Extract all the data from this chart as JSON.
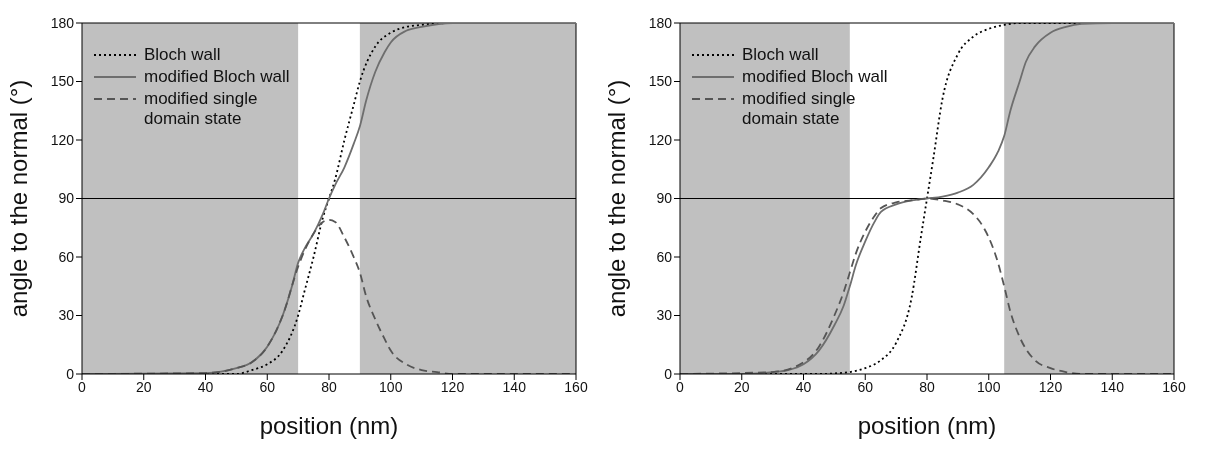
{
  "chart_data": [
    {
      "type": "line",
      "xlabel": "position (nm)",
      "ylabel": "angle to the normal (°)",
      "xlim": [
        0,
        160
      ],
      "xticks": [
        0,
        20,
        40,
        60,
        80,
        100,
        120,
        140,
        160
      ],
      "ylim": [
        0,
        180
      ],
      "yticks": [
        0,
        30,
        60,
        90,
        120,
        150,
        180
      ],
      "legend": "top left",
      "marker": "none",
      "bands": [
        {
          "axis": "x",
          "from": 0,
          "to": 70,
          "color": "#c0c0c0"
        },
        {
          "axis": "x",
          "from": 90,
          "to": 160,
          "color": "#c0c0c0"
        }
      ],
      "ref_lines": [
        {
          "axis": "y",
          "value": 90,
          "color": "#000000",
          "line_style": "solid"
        }
      ],
      "series": [
        {
          "name": "Bloch wall",
          "color": "#000000",
          "line_style": "dotted",
          "x": [
            0,
            50,
            55,
            60,
            65,
            70,
            72,
            75,
            78,
            80,
            82,
            85,
            88,
            90,
            95,
            100,
            105,
            110,
            120,
            160
          ],
          "values": [
            0,
            0,
            2,
            5,
            12,
            30,
            42,
            60,
            80,
            90,
            100,
            120,
            138,
            150,
            168,
            175,
            178,
            179,
            180,
            180
          ]
        },
        {
          "name": "modified Bloch wall",
          "color": "#6e6e6e",
          "line_style": "solid",
          "x": [
            0,
            40,
            50,
            55,
            60,
            65,
            68,
            70,
            72,
            75,
            78,
            80,
            82,
            85,
            88,
            90,
            92,
            95,
            98,
            100,
            105,
            110,
            120,
            160
          ],
          "values": [
            0,
            0.5,
            3,
            6,
            14,
            30,
            45,
            57,
            64,
            72,
            82,
            90,
            97,
            106,
            118,
            127,
            140,
            155,
            165,
            170,
            176,
            178,
            180,
            180
          ]
        },
        {
          "name": "modified single domain state",
          "color": "#555555",
          "line_style": "dashed",
          "x": [
            0,
            40,
            50,
            55,
            60,
            65,
            70,
            72,
            75,
            78,
            80,
            82,
            85,
            88,
            90,
            92,
            95,
            98,
            100,
            105,
            110,
            115,
            120,
            160
          ],
          "values": [
            0,
            0.5,
            3,
            6,
            14,
            30,
            55,
            63,
            72,
            78,
            79,
            78,
            70,
            60,
            52,
            40,
            28,
            18,
            12,
            5,
            2,
            1,
            0,
            0
          ]
        }
      ]
    },
    {
      "type": "line",
      "xlabel": "position (nm)",
      "ylabel": "angle to the normal (°)",
      "xlim": [
        0,
        160
      ],
      "xticks": [
        0,
        20,
        40,
        60,
        80,
        100,
        120,
        140,
        160
      ],
      "ylim": [
        0,
        180
      ],
      "yticks": [
        0,
        30,
        60,
        90,
        120,
        150,
        180
      ],
      "legend": "top left",
      "marker": "none",
      "bands": [
        {
          "axis": "x",
          "from": 0,
          "to": 55,
          "color": "#c0c0c0"
        },
        {
          "axis": "x",
          "from": 105,
          "to": 160,
          "color": "#c0c0c0"
        }
      ],
      "ref_lines": [
        {
          "axis": "y",
          "value": 90,
          "color": "#000000",
          "line_style": "solid"
        }
      ],
      "series": [
        {
          "name": "Bloch wall",
          "color": "#000000",
          "line_style": "dotted",
          "x": [
            0,
            45,
            50,
            55,
            60,
            65,
            70,
            75,
            78,
            80,
            82,
            85,
            90,
            95,
            100,
            105,
            110,
            160
          ],
          "values": [
            0,
            0,
            0.3,
            1,
            3,
            7,
            16,
            39,
            70,
            90,
            110,
            141,
            164,
            173,
            177,
            179,
            180,
            180
          ]
        },
        {
          "name": "modified Bloch wall",
          "color": "#6e6e6e",
          "line_style": "solid",
          "x": [
            0,
            20,
            30,
            35,
            40,
            45,
            50,
            53,
            55,
            57,
            60,
            63,
            65,
            70,
            75,
            80,
            85,
            90,
            95,
            100,
            103,
            105,
            107,
            110,
            112,
            115,
            120,
            125,
            130,
            140,
            160
          ],
          "values": [
            0,
            0,
            1,
            2,
            5,
            12,
            25,
            35,
            45,
            56,
            68,
            78,
            83,
            87,
            89,
            90,
            91,
            93,
            97,
            106,
            114,
            122,
            135,
            150,
            160,
            168,
            175,
            178,
            179.5,
            180,
            180
          ]
        },
        {
          "name": "modified single domain state",
          "color": "#555555",
          "line_style": "dashed",
          "x": [
            0,
            30,
            40,
            45,
            50,
            53,
            55,
            57,
            60,
            63,
            65,
            70,
            75,
            80,
            85,
            90,
            95,
            98,
            100,
            103,
            105,
            107,
            110,
            115,
            120,
            125,
            130,
            160
          ],
          "values": [
            0,
            1,
            6,
            14,
            30,
            42,
            52,
            62,
            73,
            81,
            85,
            88,
            89,
            90,
            89,
            87,
            82,
            76,
            70,
            57,
            45,
            32,
            19,
            7,
            3,
            1,
            0,
            0
          ]
        }
      ]
    }
  ]
}
